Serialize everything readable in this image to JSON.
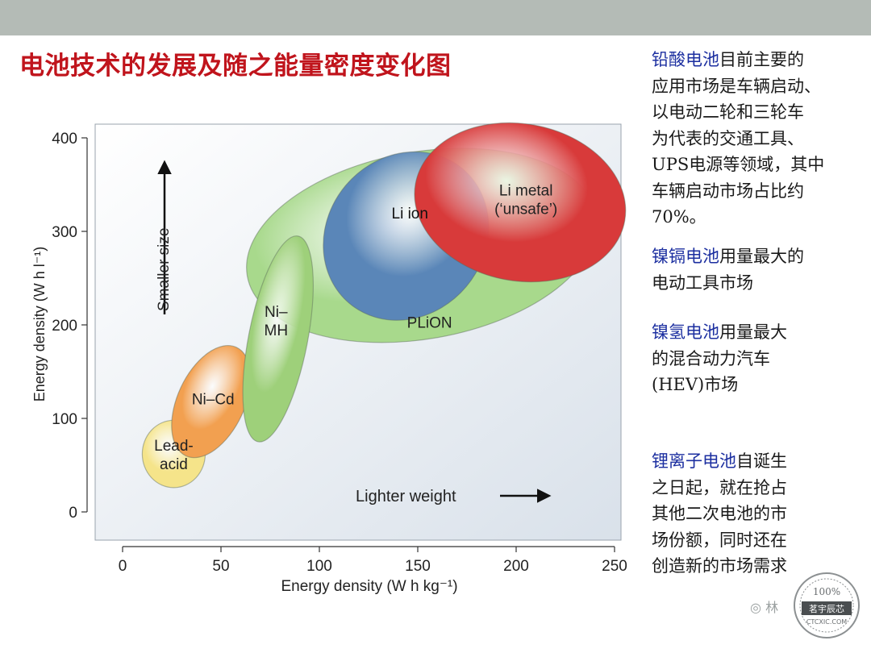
{
  "page": {
    "title": "电池技术的发展及随之能量密度变化图"
  },
  "chart_data": {
    "type": "scatter",
    "title": "",
    "xlabel": "Energy density (W h kg⁻¹)",
    "ylabel": "Energy density (W h l⁻¹)",
    "xlim": [
      0,
      250
    ],
    "ylim": [
      0,
      400
    ],
    "x_ticks": [
      "0",
      "50",
      "100",
      "150",
      "200",
      "250"
    ],
    "y_ticks": [
      "0",
      "100",
      "200",
      "300",
      "400"
    ],
    "grid": false,
    "annotations": {
      "smaller_size": "Smaller size",
      "lighter_weight": "Lighter weight"
    },
    "regions": [
      {
        "name": "Lead-acid",
        "line1": "Lead-",
        "line2": "acid",
        "x": 26,
        "y": 62,
        "rx": 16,
        "ry": 36,
        "rot": 0,
        "color": "#f5e48a"
      },
      {
        "name": "Ni-Cd",
        "line1": "Ni–Cd",
        "line2": "",
        "x": 45,
        "y": 118,
        "rx": 17,
        "ry": 64,
        "rot": 25,
        "color": "#f2a050"
      },
      {
        "name": "Ni-MH",
        "line1": "Ni–",
        "line2": "MH",
        "x": 79,
        "y": 185,
        "rx": 15,
        "ry": 112,
        "rot": 11,
        "color": "#9ed07a"
      },
      {
        "name": "PLiON",
        "line1": "PLiON",
        "line2": "",
        "x": 152,
        "y": 285,
        "rx": 90,
        "ry": 100,
        "rot": -10,
        "color": "#a8d98c"
      },
      {
        "name": "Li ion",
        "line1": "Li ion",
        "line2": "",
        "x": 144,
        "y": 295,
        "rx": 40,
        "ry": 94,
        "rot": 40,
        "color": "#5a86b8"
      },
      {
        "name": "Li metal ('unsafe')",
        "line1": "Li metal",
        "line2": "(‘unsafe’)",
        "x": 202,
        "y": 331,
        "rx": 54,
        "ry": 84,
        "rot": 10,
        "color": "#d83a3a"
      }
    ]
  },
  "notes": [
    {
      "highlight": "铅酸电池",
      "lines": [
        "目前主要的",
        "应用市场是车辆启动、",
        "以电动二轮和三轮车",
        "为代表的交通工具、",
        "UPS电源等领域，其中",
        "车辆启动市场占比约",
        "70%。"
      ]
    },
    {
      "highlight": "镍镉电池",
      "lines": [
        "用量最大的",
        "电动工具市场"
      ]
    },
    {
      "highlight": "镍氢电池",
      "lines": [
        "用量最大",
        "的混合动力汽车",
        "(HEV)市场"
      ]
    },
    {
      "highlight": "锂离子电池",
      "lines": [
        "自诞生",
        "之日起，就在抢占",
        "其他二次电池的市",
        "场份额，同时还在",
        "创造新的市场需求"
      ]
    }
  ],
  "watermark": {
    "text": "林",
    "stamp_top": "100%",
    "stamp_middle": "茗宇辰芯",
    "stamp_bottom": "CTCXIC.COM"
  }
}
